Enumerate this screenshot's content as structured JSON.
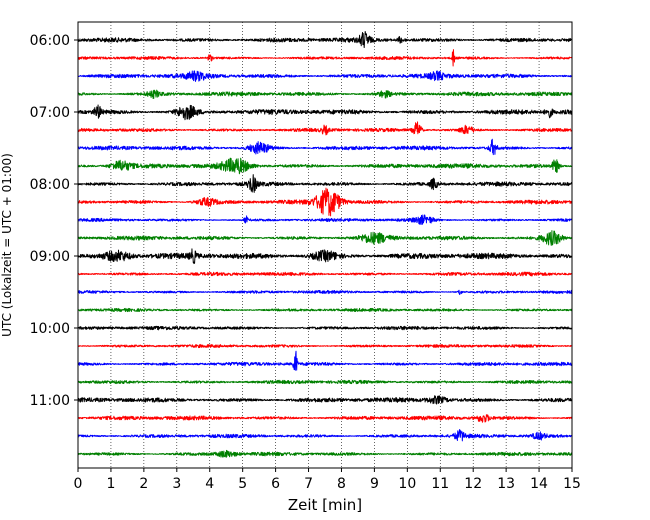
{
  "chart_data": {
    "type": "line",
    "title": "",
    "xlabel": "Zeit  [min]",
    "ylabel": "UTC (Lokalzeit = UTC + 01:00)",
    "xlim": [
      0,
      15
    ],
    "xticks": [
      0,
      1,
      2,
      3,
      4,
      5,
      6,
      7,
      8,
      9,
      10,
      11,
      12,
      13,
      14,
      15
    ],
    "grid": {
      "x": true,
      "y": false,
      "style": "dotted"
    },
    "trace_interval_min": 15,
    "trace_colors": [
      "#000000",
      "#ff0000",
      "#0000ff",
      "#008000"
    ],
    "y_tick_labels": [
      {
        "label": "06:00",
        "trace": 0
      },
      {
        "label": "07:00",
        "trace": 4
      },
      {
        "label": "08:00",
        "trace": 8
      },
      {
        "label": "09:00",
        "trace": 12
      },
      {
        "label": "10:00",
        "trace": 16
      },
      {
        "label": "11:00",
        "trace": 20
      }
    ],
    "traces": [
      {
        "start": "06:00",
        "color": "#000000",
        "amp": 0.9,
        "events": [
          {
            "t": 8.7,
            "a": 1.4,
            "w": 0.15
          },
          {
            "t": 9.8,
            "a": 0.6,
            "w": 0.1
          }
        ]
      },
      {
        "start": "06:15",
        "color": "#ff0000",
        "amp": 0.6,
        "events": [
          {
            "t": 11.4,
            "a": 1.9,
            "w": 0.04
          },
          {
            "t": 4.0,
            "a": 0.7,
            "w": 0.08
          }
        ]
      },
      {
        "start": "06:30",
        "color": "#0000ff",
        "amp": 0.9,
        "events": [
          {
            "t": 3.6,
            "a": 0.7,
            "w": 0.3
          },
          {
            "t": 10.9,
            "a": 0.6,
            "w": 0.2
          }
        ]
      },
      {
        "start": "06:45",
        "color": "#008000",
        "amp": 0.8,
        "events": [
          {
            "t": 2.3,
            "a": 0.6,
            "w": 0.2
          },
          {
            "t": 9.3,
            "a": 0.6,
            "w": 0.2
          }
        ]
      },
      {
        "start": "07:00",
        "color": "#000000",
        "amp": 1.0,
        "events": [
          {
            "t": 0.6,
            "a": 1.2,
            "w": 0.1
          },
          {
            "t": 3.3,
            "a": 1.3,
            "w": 0.3
          },
          {
            "t": 14.3,
            "a": 0.9,
            "w": 0.1
          }
        ]
      },
      {
        "start": "07:15",
        "color": "#ff0000",
        "amp": 0.7,
        "events": [
          {
            "t": 10.3,
            "a": 1.6,
            "w": 0.12
          },
          {
            "t": 11.8,
            "a": 0.8,
            "w": 0.2
          },
          {
            "t": 7.5,
            "a": 0.8,
            "w": 0.1
          }
        ]
      },
      {
        "start": "07:30",
        "color": "#0000ff",
        "amp": 0.8,
        "events": [
          {
            "t": 5.5,
            "a": 1.1,
            "w": 0.3
          },
          {
            "t": 12.6,
            "a": 1.6,
            "w": 0.1
          }
        ]
      },
      {
        "start": "07:45",
        "color": "#008000",
        "amp": 0.9,
        "events": [
          {
            "t": 1.3,
            "a": 1.0,
            "w": 0.3
          },
          {
            "t": 4.8,
            "a": 1.4,
            "w": 0.4
          },
          {
            "t": 14.5,
            "a": 1.3,
            "w": 0.1
          }
        ]
      },
      {
        "start": "08:00",
        "color": "#000000",
        "amp": 0.8,
        "events": [
          {
            "t": 5.3,
            "a": 1.6,
            "w": 0.12
          },
          {
            "t": 10.8,
            "a": 1.1,
            "w": 0.1
          }
        ]
      },
      {
        "start": "08:15",
        "color": "#ff0000",
        "amp": 0.8,
        "events": [
          {
            "t": 7.6,
            "a": 2.8,
            "w": 0.35
          },
          {
            "t": 3.9,
            "a": 0.7,
            "w": 0.3
          }
        ]
      },
      {
        "start": "08:30",
        "color": "#0000ff",
        "amp": 0.6,
        "events": [
          {
            "t": 10.5,
            "a": 0.8,
            "w": 0.3
          },
          {
            "t": 5.1,
            "a": 0.8,
            "w": 0.05
          }
        ]
      },
      {
        "start": "08:45",
        "color": "#008000",
        "amp": 0.8,
        "events": [
          {
            "t": 9.0,
            "a": 0.9,
            "w": 0.4
          },
          {
            "t": 14.4,
            "a": 1.4,
            "w": 0.3
          }
        ]
      },
      {
        "start": "09:00",
        "color": "#000000",
        "amp": 1.1,
        "events": [
          {
            "t": 1.2,
            "a": 1.0,
            "w": 0.4
          },
          {
            "t": 3.5,
            "a": 1.2,
            "w": 0.1
          },
          {
            "t": 7.5,
            "a": 0.9,
            "w": 0.4
          }
        ]
      },
      {
        "start": "09:15",
        "color": "#ff0000",
        "amp": 0.7,
        "events": []
      },
      {
        "start": "09:30",
        "color": "#0000ff",
        "amp": 0.6,
        "events": [
          {
            "t": 11.6,
            "a": 0.7,
            "w": 0.05
          }
        ]
      },
      {
        "start": "09:45",
        "color": "#008000",
        "amp": 0.6,
        "events": []
      },
      {
        "start": "10:00",
        "color": "#000000",
        "amp": 0.7,
        "events": []
      },
      {
        "start": "10:15",
        "color": "#ff0000",
        "amp": 0.6,
        "events": []
      },
      {
        "start": "10:30",
        "color": "#0000ff",
        "amp": 0.7,
        "events": [
          {
            "t": 6.6,
            "a": 3.0,
            "w": 0.05
          }
        ]
      },
      {
        "start": "10:45",
        "color": "#008000",
        "amp": 0.7,
        "events": []
      },
      {
        "start": "11:00",
        "color": "#000000",
        "amp": 0.9,
        "events": [
          {
            "t": 10.9,
            "a": 0.7,
            "w": 0.3
          }
        ]
      },
      {
        "start": "11:15",
        "color": "#ff0000",
        "amp": 0.8,
        "events": [
          {
            "t": 12.3,
            "a": 0.8,
            "w": 0.2
          }
        ]
      },
      {
        "start": "11:30",
        "color": "#0000ff",
        "amp": 0.7,
        "events": [
          {
            "t": 11.6,
            "a": 1.0,
            "w": 0.15
          },
          {
            "t": 14.0,
            "a": 0.6,
            "w": 0.2
          }
        ]
      },
      {
        "start": "11:45",
        "color": "#008000",
        "amp": 0.7,
        "events": [
          {
            "t": 4.5,
            "a": 0.6,
            "w": 0.3
          }
        ]
      }
    ]
  }
}
